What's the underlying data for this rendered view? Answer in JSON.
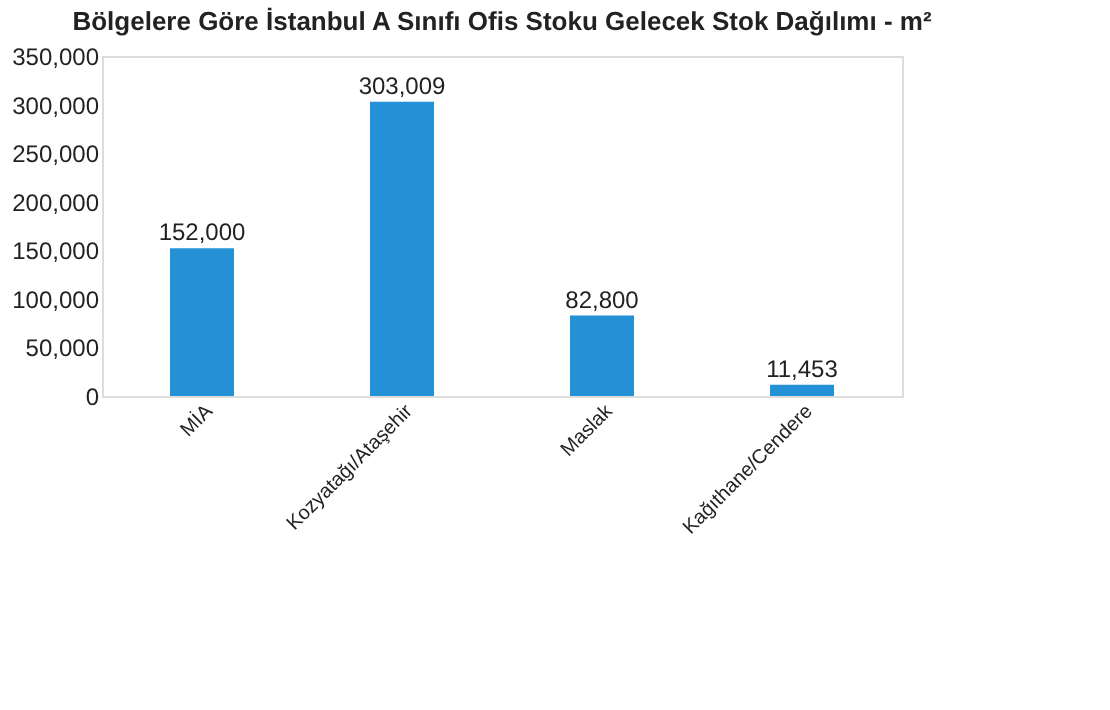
{
  "chart_data": {
    "type": "bar",
    "title": "Bölgelere Göre İstanbul A Sınıfı Ofis Stoku Gelecek Stok Dağılımı - m²",
    "categories": [
      "MİA",
      "Kozyatağı/Ataşehir",
      "Maslak",
      "Kağıthane/Cendere"
    ],
    "values": [
      152000,
      303009,
      82800,
      11453
    ],
    "value_labels": [
      "152,000",
      "303,009",
      "82,800",
      "11,453"
    ],
    "color": "#2490d6",
    "ylim": [
      0,
      350000
    ],
    "yticks": [
      0,
      {
        "value": 50000,
        "label": "50,000"
      },
      {
        "value": 100000,
        "label": "100,000"
      },
      {
        "value": 150000,
        "label": "150,000"
      },
      {
        "value": 200000,
        "label": "200,000"
      },
      {
        "value": 250000,
        "label": "250,000"
      },
      {
        "value": 300000,
        "label": "300,000"
      },
      {
        "value": 350000,
        "label": "350,000"
      }
    ],
    "grid": false
  }
}
